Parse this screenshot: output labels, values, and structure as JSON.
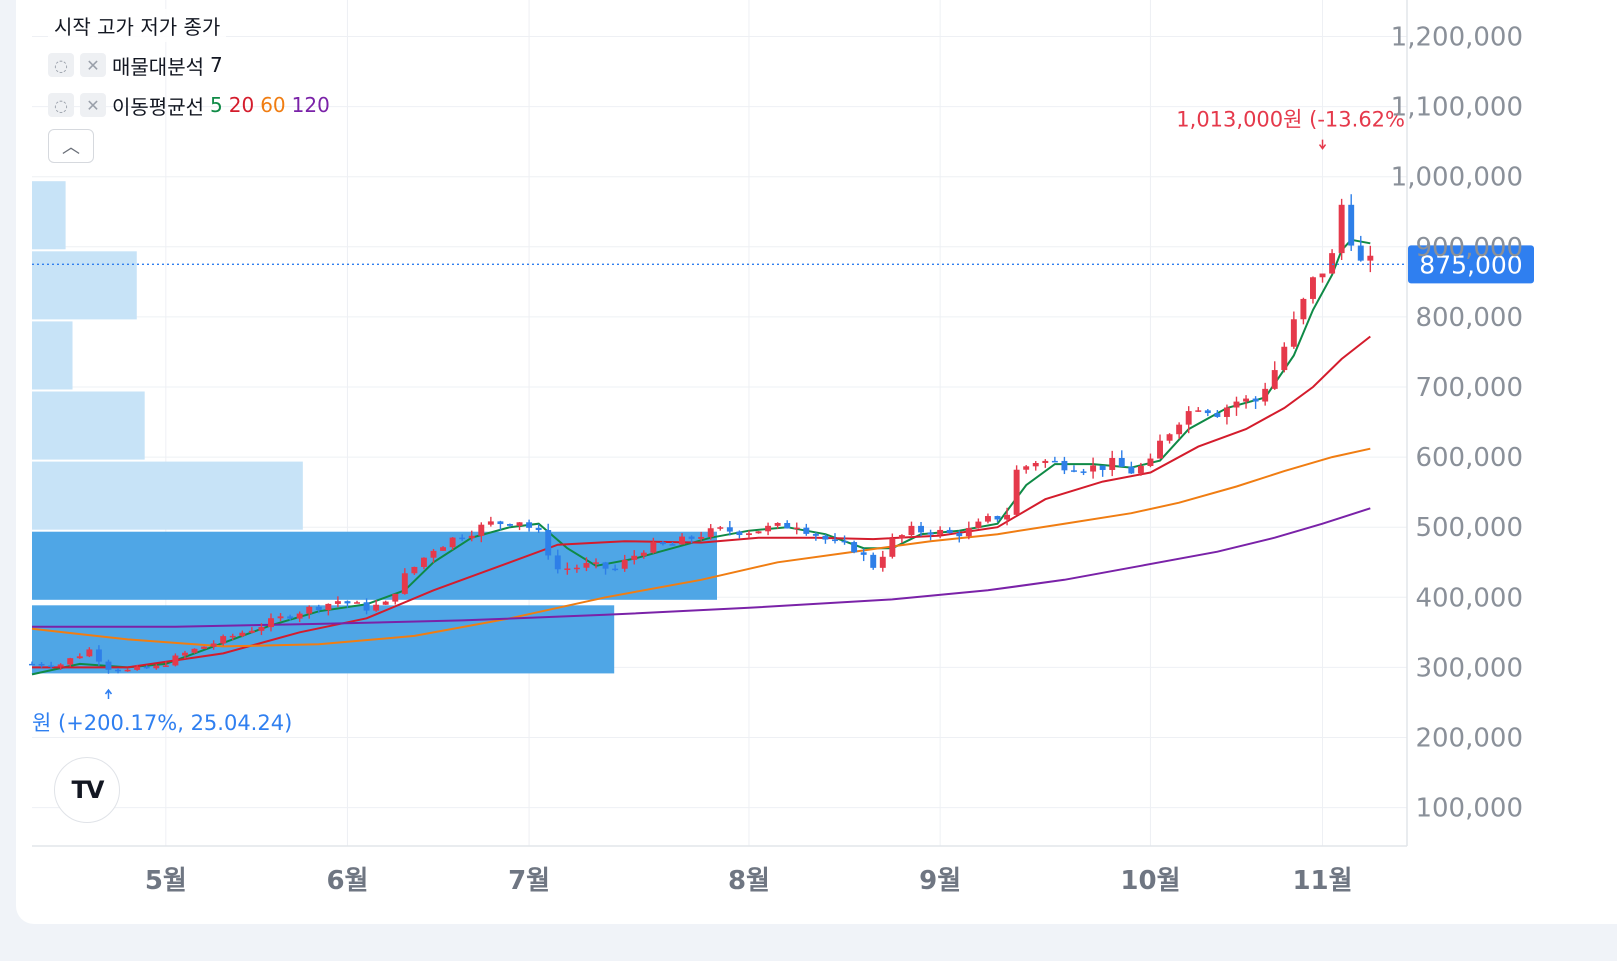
{
  "legend": {
    "ohlc_label": "시작 고가 저가 종가",
    "volume_profile": {
      "label": "매물대분석",
      "param": "7"
    },
    "moving_average": {
      "label": "이동평균선",
      "p5": "5",
      "p20": "20",
      "p60": "60",
      "p120": "120"
    }
  },
  "colors": {
    "up": "#e5394b",
    "down": "#2e7fe8",
    "ma5": "#0f8a46",
    "ma20": "#d41c2c",
    "ma60": "#f07d12",
    "ma120": "#7a22a8",
    "vp_light": "#c7e3f7",
    "vp_dark": "#4fa6e6",
    "price_tag": "#2f7ff0"
  },
  "logo_text": "TV",
  "chart_data": {
    "type": "candlestick",
    "title": "",
    "current_price": 875000,
    "current_price_label": "875,000",
    "ylim": [
      50000,
      1230000
    ],
    "y_ticks": [
      100000,
      200000,
      300000,
      400000,
      500000,
      600000,
      700000,
      800000,
      900000,
      1000000,
      1100000,
      1200000
    ],
    "y_tick_labels": [
      "100,000",
      "200,000",
      "300,000",
      "400,000",
      "500,000",
      "600,000",
      "700,000",
      "800,000",
      "900,000",
      "1,000,000",
      "1,100,000",
      "1,200,000"
    ],
    "x_range": [
      0,
      143
    ],
    "x_ticks": [
      {
        "label": "5월",
        "x": 14
      },
      {
        "label": "6월",
        "x": 33
      },
      {
        "label": "7월",
        "x": 52
      },
      {
        "label": "8월",
        "x": 75
      },
      {
        "label": "9월",
        "x": 95
      },
      {
        "label": "10월",
        "x": 117
      },
      {
        "label": "11월",
        "x": 135
      }
    ],
    "high_annotation": {
      "label": "1,013,000원 (-13.62%",
      "x": 135,
      "value": 1013000
    },
    "low_annotation": {
      "label": "원 (+200.17%, 25.04.24)",
      "x": 8,
      "value": 292000
    },
    "volume_profile": [
      {
        "low": 290000,
        "high": 390000,
        "volume": 58.9,
        "in_value_area": true
      },
      {
        "low": 395000,
        "high": 495000,
        "volume": 69.3,
        "in_value_area": true
      },
      {
        "low": 495000,
        "high": 595000,
        "volume": 27.4,
        "in_value_area": false
      },
      {
        "low": 595000,
        "high": 695000,
        "volume": 11.4,
        "in_value_area": false
      },
      {
        "low": 695000,
        "high": 795000,
        "volume": 4.1,
        "in_value_area": false
      },
      {
        "low": 795000,
        "high": 895000,
        "volume": 10.6,
        "in_value_area": false
      },
      {
        "low": 895000,
        "high": 995000,
        "volume": 3.4,
        "in_value_area": false
      }
    ],
    "close_keypoints": [
      [
        0,
        305000
      ],
      [
        3,
        305000
      ],
      [
        6,
        325000
      ],
      [
        8,
        300000
      ],
      [
        10,
        295000
      ],
      [
        13,
        300000
      ],
      [
        16,
        320000
      ],
      [
        20,
        340000
      ],
      [
        24,
        360000
      ],
      [
        28,
        380000
      ],
      [
        32,
        395000
      ],
      [
        35,
        385000
      ],
      [
        37,
        390000
      ],
      [
        39,
        430000
      ],
      [
        42,
        470000
      ],
      [
        45,
        490000
      ],
      [
        48,
        505000
      ],
      [
        51,
        510000
      ],
      [
        53,
        490000
      ],
      [
        55,
        440000
      ],
      [
        58,
        445000
      ],
      [
        61,
        440000
      ],
      [
        64,
        470000
      ],
      [
        67,
        475000
      ],
      [
        70,
        490000
      ],
      [
        72,
        495000
      ],
      [
        75,
        495000
      ],
      [
        78,
        500000
      ],
      [
        80,
        505000
      ],
      [
        82,
        490000
      ],
      [
        84,
        475000
      ],
      [
        86,
        470000
      ],
      [
        88,
        445000
      ],
      [
        90,
        480000
      ],
      [
        92,
        495000
      ],
      [
        94,
        495000
      ],
      [
        96,
        490000
      ],
      [
        98,
        495000
      ],
      [
        100,
        510000
      ],
      [
        102,
        520000
      ],
      [
        103,
        580000
      ],
      [
        105,
        595000
      ],
      [
        108,
        590000
      ],
      [
        111,
        585000
      ],
      [
        113,
        590000
      ],
      [
        115,
        580000
      ],
      [
        117,
        590000
      ],
      [
        118,
        620000
      ],
      [
        120,
        655000
      ],
      [
        122,
        675000
      ],
      [
        124,
        665000
      ],
      [
        126,
        680000
      ],
      [
        128,
        680000
      ],
      [
        130,
        725000
      ],
      [
        132,
        790000
      ],
      [
        134,
        850000
      ],
      [
        136,
        885000
      ],
      [
        137,
        960000
      ],
      [
        138,
        915000
      ],
      [
        139,
        875000
      ],
      [
        140,
        875000
      ]
    ],
    "moving_averages": [
      {
        "name": "5",
        "points": [
          [
            0,
            290000
          ],
          [
            5,
            305000
          ],
          [
            10,
            300000
          ],
          [
            14,
            305000
          ],
          [
            20,
            335000
          ],
          [
            25,
            360000
          ],
          [
            30,
            380000
          ],
          [
            35,
            390000
          ],
          [
            39,
            410000
          ],
          [
            42,
            450000
          ],
          [
            46,
            485000
          ],
          [
            50,
            500000
          ],
          [
            53,
            505000
          ],
          [
            56,
            470000
          ],
          [
            59,
            445000
          ],
          [
            63,
            455000
          ],
          [
            67,
            470000
          ],
          [
            71,
            485000
          ],
          [
            75,
            495000
          ],
          [
            79,
            500000
          ],
          [
            83,
            490000
          ],
          [
            87,
            470000
          ],
          [
            90,
            470000
          ],
          [
            93,
            490000
          ],
          [
            97,
            495000
          ],
          [
            101,
            505000
          ],
          [
            104,
            560000
          ],
          [
            107,
            590000
          ],
          [
            111,
            590000
          ],
          [
            115,
            585000
          ],
          [
            118,
            595000
          ],
          [
            121,
            640000
          ],
          [
            125,
            670000
          ],
          [
            129,
            685000
          ],
          [
            132,
            745000
          ],
          [
            134,
            810000
          ],
          [
            136,
            860000
          ],
          [
            137,
            895000
          ],
          [
            138,
            910000
          ],
          [
            140,
            905000
          ]
        ]
      },
      {
        "name": "20",
        "points": [
          [
            0,
            300000
          ],
          [
            10,
            300000
          ],
          [
            20,
            320000
          ],
          [
            28,
            350000
          ],
          [
            35,
            370000
          ],
          [
            42,
            410000
          ],
          [
            50,
            450000
          ],
          [
            55,
            475000
          ],
          [
            62,
            480000
          ],
          [
            70,
            478000
          ],
          [
            76,
            485000
          ],
          [
            82,
            485000
          ],
          [
            88,
            483000
          ],
          [
            95,
            488000
          ],
          [
            101,
            500000
          ],
          [
            106,
            540000
          ],
          [
            112,
            565000
          ],
          [
            117,
            578000
          ],
          [
            122,
            615000
          ],
          [
            127,
            640000
          ],
          [
            131,
            670000
          ],
          [
            134,
            700000
          ],
          [
            137,
            740000
          ],
          [
            140,
            772000
          ]
        ]
      },
      {
        "name": "60",
        "points": [
          [
            0,
            355000
          ],
          [
            10,
            340000
          ],
          [
            20,
            330000
          ],
          [
            30,
            333000
          ],
          [
            40,
            345000
          ],
          [
            50,
            370000
          ],
          [
            60,
            400000
          ],
          [
            70,
            425000
          ],
          [
            78,
            450000
          ],
          [
            86,
            465000
          ],
          [
            94,
            480000
          ],
          [
            101,
            490000
          ],
          [
            108,
            505000
          ],
          [
            115,
            520000
          ],
          [
            120,
            535000
          ],
          [
            126,
            558000
          ],
          [
            131,
            580000
          ],
          [
            136,
            600000
          ],
          [
            140,
            612000
          ]
        ]
      },
      {
        "name": "120",
        "points": [
          [
            0,
            358000
          ],
          [
            15,
            358000
          ],
          [
            30,
            362000
          ],
          [
            45,
            367000
          ],
          [
            60,
            375000
          ],
          [
            75,
            385000
          ],
          [
            90,
            397000
          ],
          [
            100,
            410000
          ],
          [
            108,
            425000
          ],
          [
            116,
            445000
          ],
          [
            124,
            465000
          ],
          [
            130,
            485000
          ],
          [
            135,
            505000
          ],
          [
            140,
            527000
          ]
        ]
      }
    ]
  }
}
